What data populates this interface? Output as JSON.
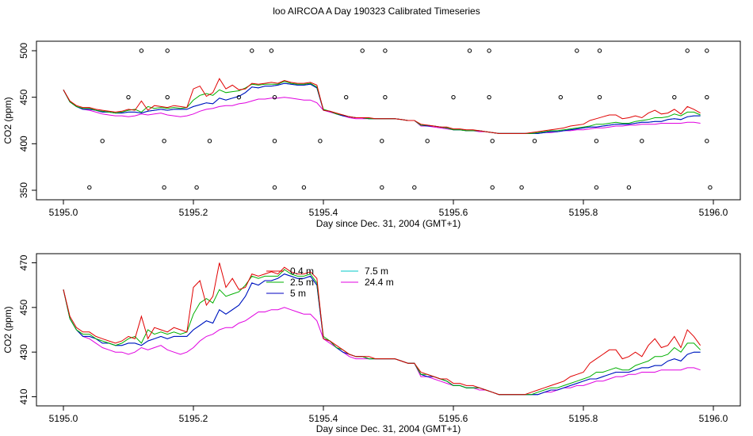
{
  "title": "loo AIRCOA A  Day 190323  Calibrated Timeseries",
  "colors": {
    "0.4 m": "#e00000",
    "2.5 m": "#00b000",
    "5 m": "#0000c0",
    "7.5 m": "#00c8c8",
    "24.4 m": "#e000e0"
  },
  "chart_data": [
    {
      "type": "line",
      "xlabel": "Day since Dec. 31, 2004 (GMT+1)",
      "ylabel": "CO2 (ppm)",
      "xlim": [
        5195.0,
        5196.0
      ],
      "ylim": [
        350,
        500
      ],
      "xticks": [
        "5195.0",
        "5195.2",
        "5195.4",
        "5195.6",
        "5195.8",
        "5196.0"
      ],
      "yticks": [
        "350",
        "400",
        "450",
        "500"
      ],
      "legend": null,
      "x": [
        5195.0,
        5195.01,
        5195.02,
        5195.03,
        5195.04,
        5195.05,
        5195.06,
        5195.07,
        5195.08,
        5195.09,
        5195.1,
        5195.11,
        5195.12,
        5195.13,
        5195.14,
        5195.15,
        5195.16,
        5195.17,
        5195.18,
        5195.19,
        5195.2,
        5195.21,
        5195.22,
        5195.23,
        5195.24,
        5195.25,
        5195.26,
        5195.27,
        5195.28,
        5195.29,
        5195.3,
        5195.31,
        5195.32,
        5195.33,
        5195.34,
        5195.35,
        5195.36,
        5195.37,
        5195.38,
        5195.39,
        5195.4,
        5195.41,
        5195.42,
        5195.43,
        5195.44,
        5195.45,
        5195.46,
        5195.47,
        5195.48,
        5195.49,
        5195.5,
        5195.51,
        5195.52,
        5195.53,
        5195.54,
        5195.55,
        5195.56,
        5195.57,
        5195.58,
        5195.59,
        5195.6,
        5195.61,
        5195.62,
        5195.63,
        5195.64,
        5195.65,
        5195.66,
        5195.67,
        5195.68,
        5195.69,
        5195.7,
        5195.71,
        5195.72,
        5195.73,
        5195.74,
        5195.75,
        5195.76,
        5195.77,
        5195.78,
        5195.79,
        5195.8,
        5195.81,
        5195.82,
        5195.83,
        5195.84,
        5195.85,
        5195.86,
        5195.87,
        5195.88,
        5195.89,
        5195.9,
        5195.91,
        5195.92,
        5195.93,
        5195.94,
        5195.95,
        5195.96,
        5195.97,
        5195.98
      ],
      "series": [
        {
          "name": "0.4 m",
          "values": [
            458,
            446,
            441,
            439,
            439,
            437,
            436,
            435,
            434,
            435,
            437,
            436,
            446,
            436,
            441,
            440,
            439,
            441,
            440,
            439,
            459,
            462,
            451,
            455,
            470,
            459,
            463,
            458,
            459,
            465,
            464,
            465,
            466,
            465,
            468,
            466,
            465,
            465,
            466,
            463,
            436,
            435,
            433,
            431,
            429,
            428,
            428,
            428,
            427,
            427,
            427,
            427,
            426,
            425,
            425,
            421,
            420,
            419,
            418,
            418,
            416,
            416,
            415,
            415,
            414,
            413,
            412,
            411,
            411,
            411,
            411,
            411,
            412,
            413,
            414,
            415,
            416,
            417,
            419,
            420,
            421,
            425,
            427,
            429,
            431,
            431,
            427,
            428,
            430,
            428,
            433,
            436,
            432,
            433,
            437,
            432,
            440,
            437,
            433
          ]
        },
        {
          "name": "2.5 m",
          "values": [
            458,
            445,
            440,
            438,
            438,
            436,
            435,
            434,
            433,
            434,
            436,
            437,
            434,
            440,
            438,
            439,
            438,
            439,
            438,
            439,
            447,
            452,
            454,
            452,
            458,
            455,
            456,
            457,
            460,
            464,
            463,
            464,
            464,
            464,
            467,
            465,
            464,
            464,
            465,
            461,
            437,
            435,
            432,
            431,
            429,
            428,
            428,
            427,
            427,
            427,
            427,
            427,
            426,
            425,
            425,
            420,
            420,
            419,
            418,
            417,
            415,
            415,
            414,
            414,
            414,
            413,
            412,
            411,
            411,
            411,
            411,
            411,
            411,
            412,
            413,
            414,
            414,
            415,
            416,
            417,
            418,
            419,
            421,
            421,
            422,
            423,
            422,
            422,
            424,
            425,
            426,
            428,
            428,
            429,
            432,
            430,
            434,
            434,
            431
          ]
        },
        {
          "name": "5 m",
          "values": [
            458,
            445,
            440,
            437,
            437,
            436,
            434,
            434,
            433,
            433,
            434,
            434,
            433,
            435,
            436,
            437,
            436,
            437,
            437,
            437,
            440,
            442,
            444,
            443,
            449,
            447,
            449,
            451,
            455,
            461,
            460,
            462,
            462,
            463,
            465,
            464,
            463,
            463,
            464,
            460,
            436,
            435,
            432,
            430,
            429,
            428,
            428,
            427,
            427,
            427,
            427,
            427,
            426,
            425,
            425,
            420,
            419,
            419,
            418,
            417,
            415,
            415,
            414,
            414,
            414,
            413,
            412,
            411,
            411,
            411,
            411,
            411,
            411,
            411,
            412,
            413,
            413,
            414,
            415,
            416,
            417,
            418,
            418,
            419,
            420,
            421,
            421,
            421,
            422,
            423,
            423,
            424,
            424,
            426,
            427,
            426,
            429,
            430,
            430
          ]
        },
        {
          "name": "7.5 m",
          "values": [
            458,
            445,
            440,
            437,
            437,
            436,
            434,
            434,
            433,
            433,
            434,
            434,
            433,
            435,
            436,
            437,
            436,
            437,
            437,
            437,
            440,
            442,
            444,
            443,
            449,
            447,
            449,
            451,
            455,
            461,
            460,
            462,
            462,
            463,
            465,
            464,
            463,
            463,
            464,
            460,
            436,
            435,
            432,
            430,
            429,
            428,
            428,
            427,
            427,
            427,
            427,
            427,
            426,
            425,
            425,
            420,
            419,
            419,
            418,
            417,
            415,
            415,
            414,
            414,
            414,
            413,
            412,
            411,
            411,
            411,
            411,
            411,
            411,
            411,
            412,
            413,
            413,
            414,
            415,
            416,
            417,
            418,
            418,
            419,
            420,
            421,
            421,
            421,
            422,
            423,
            423,
            424,
            424,
            426,
            427,
            426,
            429,
            430,
            430
          ]
        },
        {
          "name": "24.4 m",
          "values": [
            458,
            445,
            440,
            437,
            436,
            434,
            432,
            431,
            430,
            430,
            429,
            430,
            432,
            431,
            432,
            433,
            431,
            430,
            429,
            430,
            432,
            435,
            437,
            438,
            440,
            441,
            441,
            443,
            444,
            446,
            448,
            448,
            449,
            449,
            450,
            449,
            448,
            447,
            447,
            444,
            436,
            434,
            432,
            430,
            428,
            427,
            427,
            427,
            427,
            427,
            427,
            427,
            426,
            425,
            425,
            419,
            419,
            418,
            417,
            416,
            415,
            415,
            414,
            414,
            413,
            413,
            412,
            411,
            411,
            411,
            411,
            411,
            411,
            411,
            412,
            412,
            413,
            414,
            414,
            415,
            415,
            416,
            417,
            417,
            418,
            419,
            419,
            420,
            420,
            421,
            421,
            421,
            422,
            422,
            422,
            422,
            423,
            423,
            422
          ]
        }
      ],
      "markers": {
        "type": "scatter",
        "x": [
          5195.12,
          5195.16,
          5195.29,
          5195.32,
          5195.46,
          5195.495,
          5195.625,
          5195.655,
          5195.79,
          5195.825,
          5195.96,
          5195.99,
          5195.1,
          5195.16,
          5195.27,
          5195.325,
          5195.435,
          5195.495,
          5195.6,
          5195.655,
          5195.765,
          5195.825,
          5195.94,
          5195.99,
          5195.06,
          5195.155,
          5195.225,
          5195.325,
          5195.395,
          5195.49,
          5195.56,
          5195.66,
          5195.725,
          5195.82,
          5195.89,
          5195.99,
          5195.04,
          5195.155,
          5195.205,
          5195.325,
          5195.37,
          5195.49,
          5195.54,
          5195.66,
          5195.705,
          5195.82,
          5195.87,
          5195.995
        ],
        "y": [
          500,
          500,
          500,
          500,
          500,
          500,
          500,
          500,
          500,
          500,
          500,
          500,
          450,
          450,
          450,
          450,
          450,
          450,
          450,
          450,
          450,
          450,
          450,
          450,
          403,
          403,
          403,
          403,
          403,
          403,
          403,
          403,
          403,
          403,
          403,
          403,
          353,
          353,
          353,
          353,
          353,
          353,
          353,
          353,
          353,
          353,
          353,
          353
        ]
      }
    },
    {
      "type": "line",
      "xlabel": "Day since Dec. 31, 2004 (GMT+1)",
      "ylabel": "CO2 (ppm)",
      "xlim": [
        5195.0,
        5196.0
      ],
      "ylim": [
        410,
        470
      ],
      "xticks": [
        "5195.0",
        "5195.2",
        "5195.4",
        "5195.6",
        "5195.8",
        "5196.0"
      ],
      "yticks": [
        "410",
        "430",
        "450",
        "470"
      ],
      "legend": "top-center",
      "legend_entries": [
        "0.4 m",
        "7.5 m",
        "2.5 m",
        "24.4 m",
        "5 m"
      ],
      "x": "same-as-first",
      "series_ref": "same-as-first"
    }
  ]
}
